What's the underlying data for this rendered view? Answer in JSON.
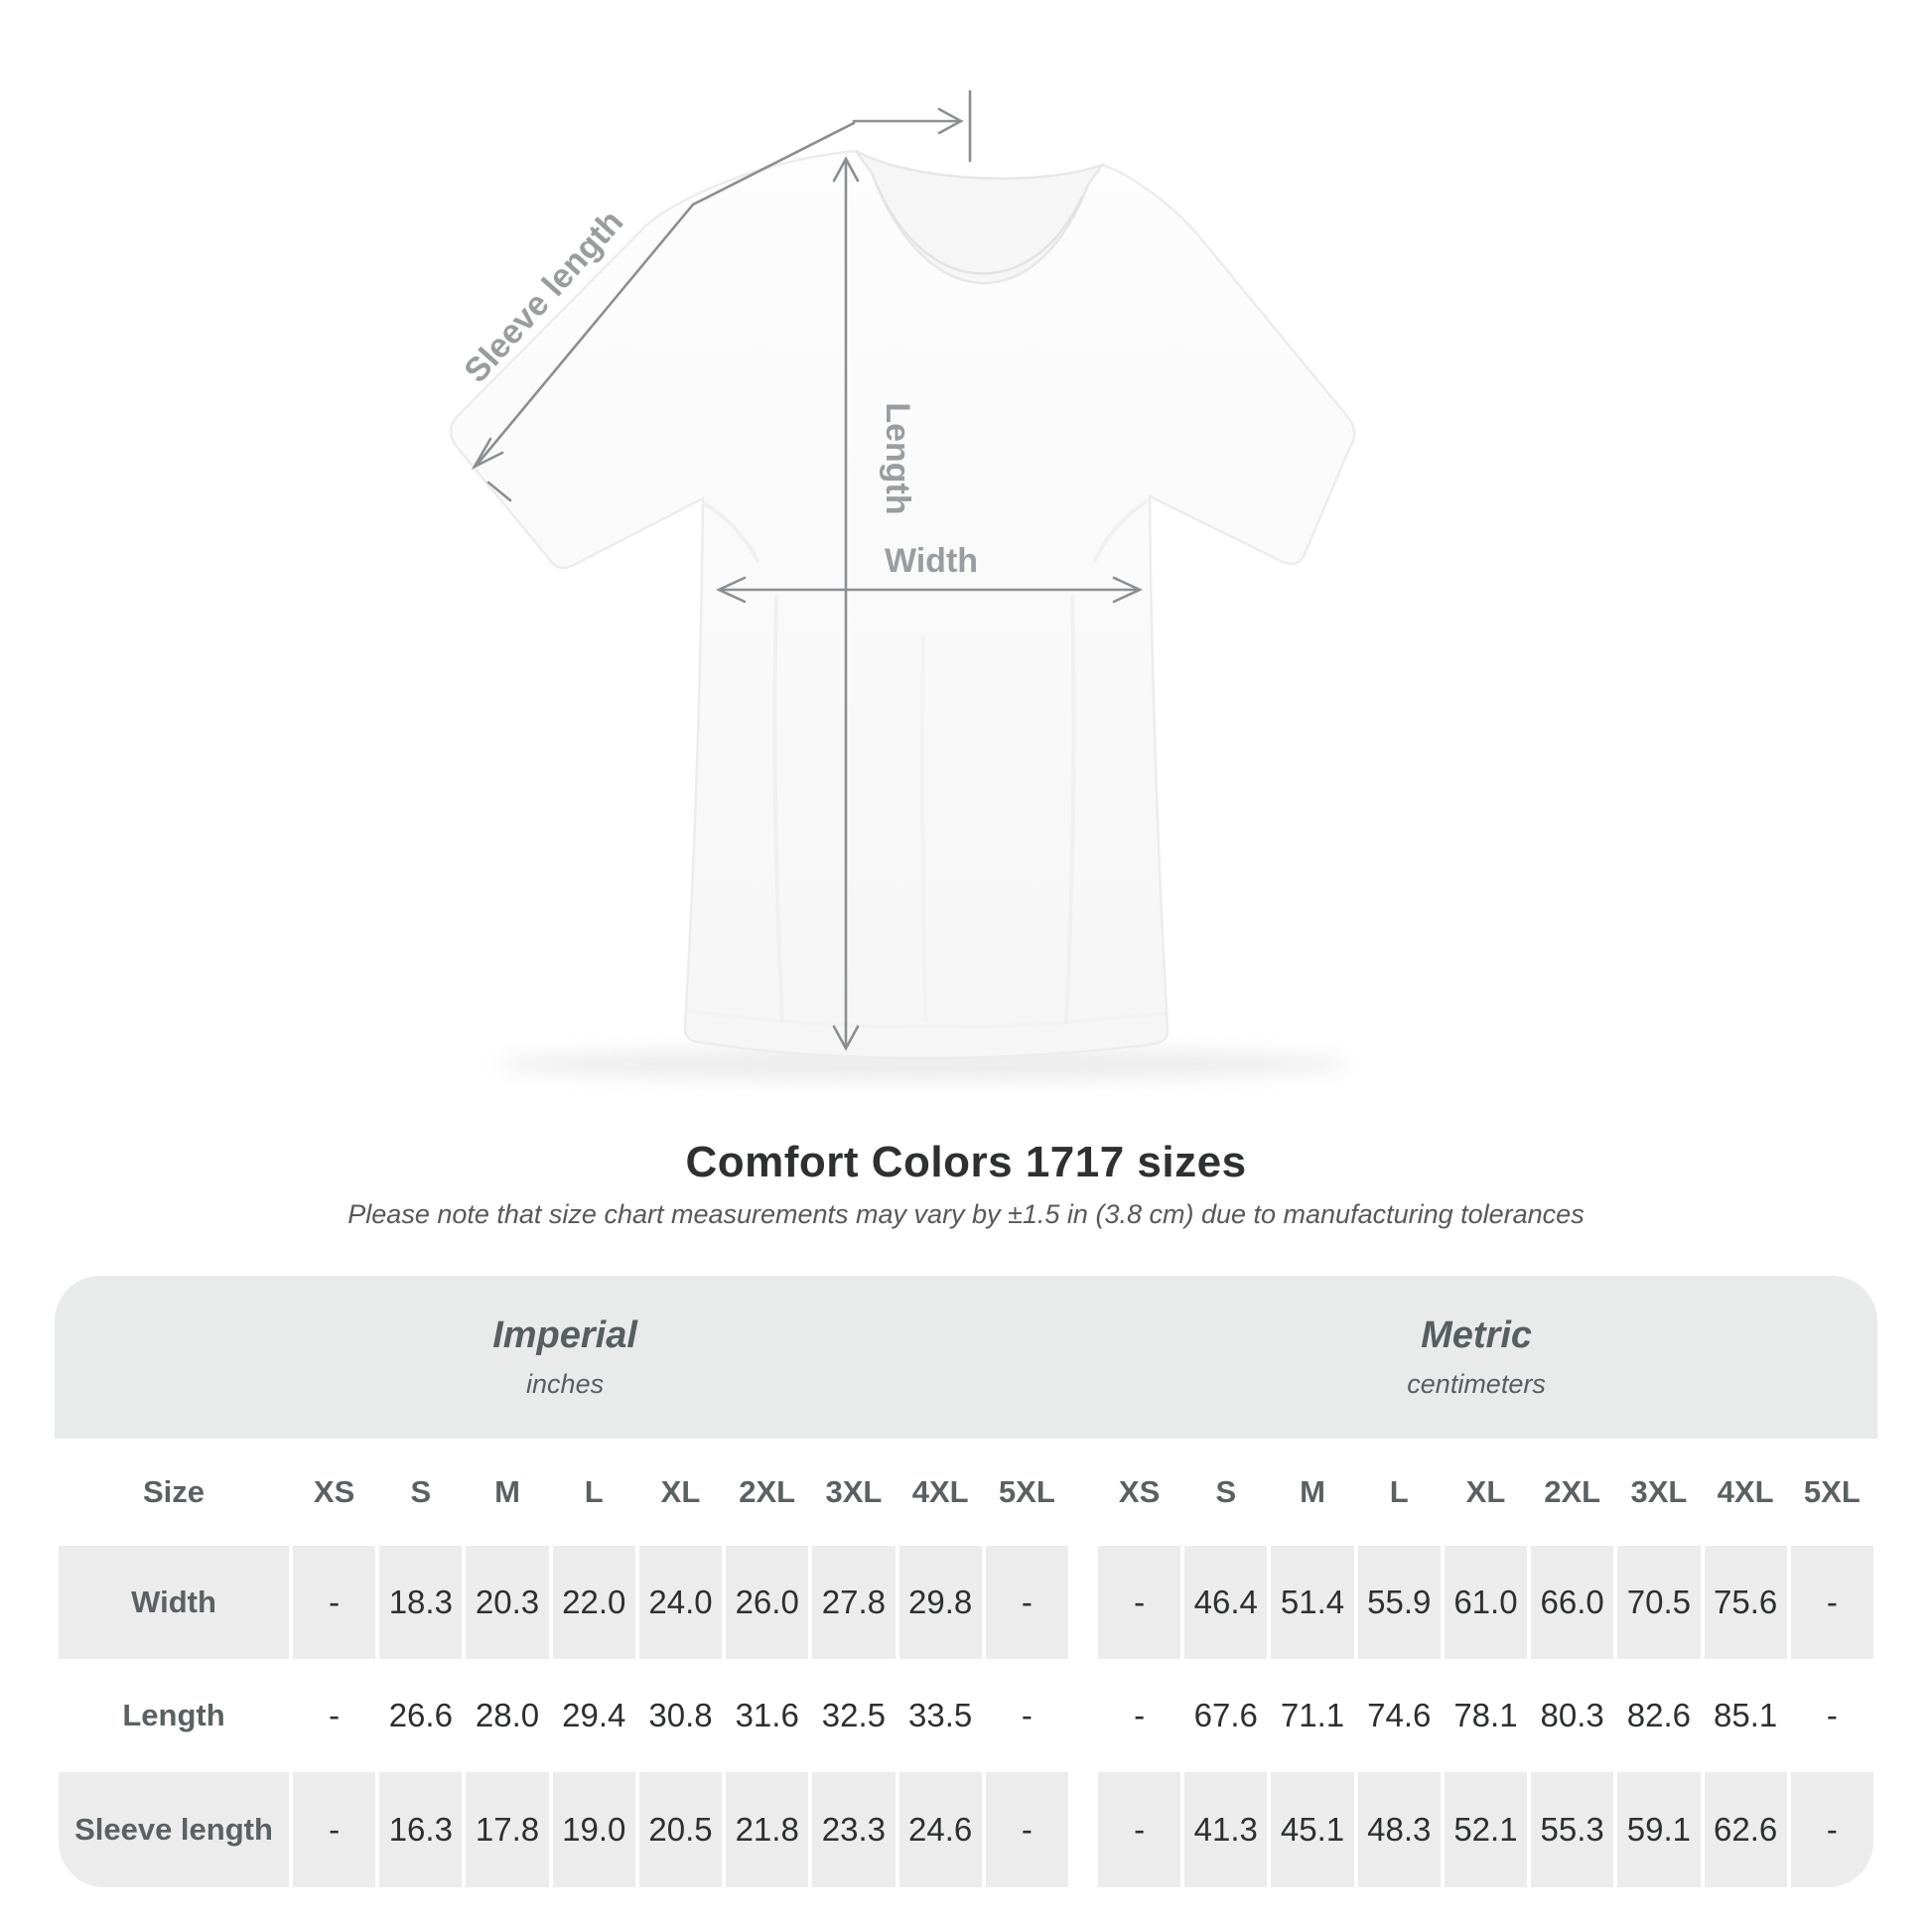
{
  "diagram": {
    "labels": {
      "sleeve_length": "Sleeve length",
      "length": "Length",
      "width": "Width"
    }
  },
  "title": "Comfort Colors 1717 sizes",
  "subtitle": "Please note that size chart measurements may vary by ±1.5 in (3.8 cm) due to manufacturing tolerances",
  "table": {
    "size_label": "Size",
    "sections": [
      {
        "name": "Imperial",
        "unit": "inches"
      },
      {
        "name": "Metric",
        "unit": "centimeters"
      }
    ],
    "columns": [
      "XS",
      "S",
      "M",
      "L",
      "XL",
      "2XL",
      "3XL",
      "4XL",
      "5XL"
    ],
    "rows": [
      {
        "label": "Width",
        "imperial": [
          "-",
          "18.3",
          "20.3",
          "22.0",
          "24.0",
          "26.0",
          "27.8",
          "29.8",
          "-"
        ],
        "metric": [
          "-",
          "46.4",
          "51.4",
          "55.9",
          "61.0",
          "66.0",
          "70.5",
          "75.6",
          "-"
        ]
      },
      {
        "label": "Length",
        "imperial": [
          "-",
          "26.6",
          "28.0",
          "29.4",
          "30.8",
          "31.6",
          "32.5",
          "33.5",
          "-"
        ],
        "metric": [
          "-",
          "67.6",
          "71.1",
          "74.6",
          "78.1",
          "80.3",
          "82.6",
          "85.1",
          "-"
        ]
      },
      {
        "label": "Sleeve length",
        "imperial": [
          "-",
          "16.3",
          "17.8",
          "19.0",
          "20.5",
          "21.8",
          "23.3",
          "24.6",
          "-"
        ],
        "metric": [
          "-",
          "41.3",
          "45.1",
          "48.3",
          "52.1",
          "55.3",
          "59.1",
          "62.6",
          "-"
        ]
      }
    ]
  },
  "colors": {
    "annotation_line": "#8c8f91",
    "annotation_label": "#9a9da0",
    "table_band_bg": "#e9eaea",
    "table_stripe_bg": "#ebeceb",
    "heading_text": "#2e3031",
    "table_head_text": "#5b6163",
    "cell_text": "#2d2f30"
  }
}
